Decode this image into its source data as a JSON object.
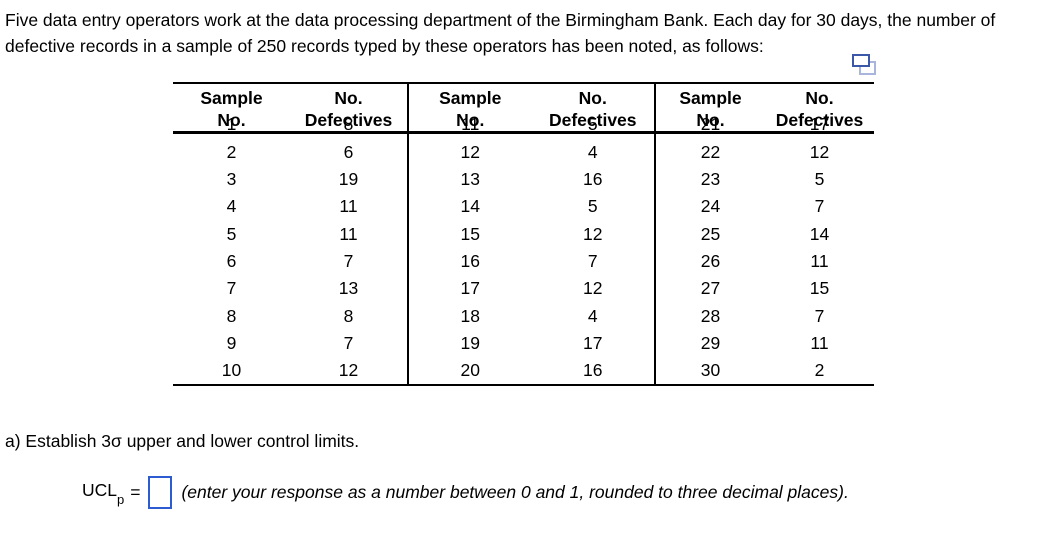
{
  "problem": {
    "statement": "Five data entry operators work at the data processing department of the Birmingham Bank. Each day for 30 days, the number of defective records in a sample of 250 records typed by these operators has been noted, as follows:"
  },
  "colors": {
    "accent_blue": "#2d5bd0",
    "icon_blue_dark": "#3a57a8",
    "icon_blue_light": "#aab5de",
    "table_border": "#000000",
    "text": "#000000"
  },
  "icons": {
    "copy": "copy-icon"
  },
  "table": {
    "header": {
      "sample_line1": "Sample",
      "sample_line2": "No.",
      "defectives_line1": "No.",
      "defectives_line2": "Defectives"
    },
    "groups": [
      {
        "rows": [
          {
            "sample": "1",
            "defectives": "8"
          },
          {
            "sample": "2",
            "defectives": "6"
          },
          {
            "sample": "3",
            "defectives": "19"
          },
          {
            "sample": "4",
            "defectives": "11"
          },
          {
            "sample": "5",
            "defectives": "11"
          },
          {
            "sample": "6",
            "defectives": "7"
          },
          {
            "sample": "7",
            "defectives": "13"
          },
          {
            "sample": "8",
            "defectives": "8"
          },
          {
            "sample": "9",
            "defectives": "7"
          },
          {
            "sample": "10",
            "defectives": "12"
          }
        ]
      },
      {
        "rows": [
          {
            "sample": "11",
            "defectives": "5"
          },
          {
            "sample": "12",
            "defectives": "4"
          },
          {
            "sample": "13",
            "defectives": "16"
          },
          {
            "sample": "14",
            "defectives": "5"
          },
          {
            "sample": "15",
            "defectives": "12"
          },
          {
            "sample": "16",
            "defectives": "7"
          },
          {
            "sample": "17",
            "defectives": "12"
          },
          {
            "sample": "18",
            "defectives": "4"
          },
          {
            "sample": "19",
            "defectives": "17"
          },
          {
            "sample": "20",
            "defectives": "16"
          }
        ]
      },
      {
        "rows": [
          {
            "sample": "21",
            "defectives": "17"
          },
          {
            "sample": "22",
            "defectives": "12"
          },
          {
            "sample": "23",
            "defectives": "5"
          },
          {
            "sample": "24",
            "defectives": "7"
          },
          {
            "sample": "25",
            "defectives": "14"
          },
          {
            "sample": "26",
            "defectives": "11"
          },
          {
            "sample": "27",
            "defectives": "15"
          },
          {
            "sample": "28",
            "defectives": "7"
          },
          {
            "sample": "29",
            "defectives": "11"
          },
          {
            "sample": "30",
            "defectives": "2"
          }
        ]
      }
    ]
  },
  "question": {
    "text": "a) Establish 3σ upper and lower control limits."
  },
  "answer": {
    "ucl_label": "UCL",
    "ucl_subscript": "p",
    "equals": "=",
    "input_value": "",
    "hint": "(enter your response as a number between 0 and 1, rounded to three decimal places)."
  }
}
